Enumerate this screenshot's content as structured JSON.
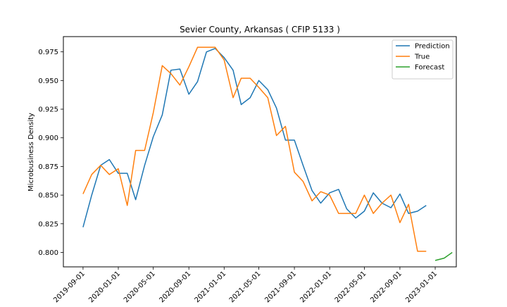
{
  "chart_data": {
    "type": "line",
    "title": "Sevier County, Arkansas ( CFIP 5133 )",
    "xlabel": "",
    "ylabel": "Microbusiness Density",
    "xlim": [
      "2019-06-25",
      "2023-03-15"
    ],
    "ylim": [
      0.7874,
      0.9883
    ],
    "x_ticks": [
      "2019-09-01",
      "2020-01-01",
      "2020-05-01",
      "2020-09-01",
      "2021-01-01",
      "2021-05-01",
      "2021-09-01",
      "2022-01-01",
      "2022-05-01",
      "2022-09-01",
      "2023-01-01"
    ],
    "y_ticks": [
      0.8,
      0.825,
      0.85,
      0.875,
      0.9,
      0.925,
      0.95,
      0.975
    ],
    "y_tick_labels": [
      "0.800",
      "0.825",
      "0.850",
      "0.875",
      "0.900",
      "0.925",
      "0.950",
      "0.975"
    ],
    "grid": false,
    "legend_position": "top-right",
    "series": [
      {
        "name": "Prediction",
        "color": "#1f77b4",
        "x": [
          "2019-09-01",
          "2019-10-01",
          "2019-11-01",
          "2019-12-01",
          "2020-01-01",
          "2020-02-01",
          "2020-03-01",
          "2020-04-01",
          "2020-05-01",
          "2020-06-01",
          "2020-07-01",
          "2020-08-01",
          "2020-09-01",
          "2020-10-01",
          "2020-11-01",
          "2020-12-01",
          "2021-01-01",
          "2021-02-01",
          "2021-03-01",
          "2021-04-01",
          "2021-05-01",
          "2021-06-01",
          "2021-07-01",
          "2021-08-01",
          "2021-09-01",
          "2021-10-01",
          "2021-11-01",
          "2021-12-01",
          "2022-01-01",
          "2022-02-01",
          "2022-03-01",
          "2022-04-01",
          "2022-05-01",
          "2022-06-01",
          "2022-07-01",
          "2022-08-01",
          "2022-09-01",
          "2022-10-01",
          "2022-11-01",
          "2022-12-01"
        ],
        "y": [
          0.822,
          0.85,
          0.876,
          0.881,
          0.869,
          0.869,
          0.846,
          0.876,
          0.901,
          0.92,
          0.959,
          0.96,
          0.938,
          0.949,
          0.975,
          0.978,
          0.97,
          0.959,
          0.929,
          0.935,
          0.95,
          0.942,
          0.926,
          0.898,
          0.898,
          0.876,
          0.854,
          0.843,
          0.852,
          0.855,
          0.838,
          0.83,
          0.836,
          0.852,
          0.843,
          0.839,
          0.851,
          0.834,
          0.836,
          0.841
        ]
      },
      {
        "name": "True",
        "color": "#ff7f0e",
        "x": [
          "2019-09-01",
          "2019-10-01",
          "2019-11-01",
          "2019-12-01",
          "2020-01-01",
          "2020-02-01",
          "2020-03-01",
          "2020-04-01",
          "2020-05-01",
          "2020-06-01",
          "2020-07-01",
          "2020-08-01",
          "2020-09-01",
          "2020-10-01",
          "2020-11-01",
          "2020-12-01",
          "2021-01-01",
          "2021-02-01",
          "2021-03-01",
          "2021-04-01",
          "2021-05-01",
          "2021-06-01",
          "2021-07-01",
          "2021-08-01",
          "2021-09-01",
          "2021-10-01",
          "2021-11-01",
          "2021-12-01",
          "2022-01-01",
          "2022-02-01",
          "2022-03-01",
          "2022-04-01",
          "2022-05-01",
          "2022-06-01",
          "2022-07-01",
          "2022-08-01",
          "2022-09-01",
          "2022-10-01",
          "2022-11-01",
          "2022-12-01"
        ],
        "y": [
          0.851,
          0.868,
          0.876,
          0.868,
          0.873,
          0.841,
          0.889,
          0.889,
          0.922,
          0.963,
          0.956,
          0.946,
          0.962,
          0.979,
          0.979,
          0.979,
          0.968,
          0.935,
          0.952,
          0.952,
          0.944,
          0.935,
          0.902,
          0.91,
          0.87,
          0.862,
          0.845,
          0.853,
          0.85,
          0.834,
          0.834,
          0.834,
          0.85,
          0.834,
          0.843,
          0.85,
          0.826,
          0.842,
          0.801,
          0.801
        ]
      },
      {
        "name": "Forecast",
        "color": "#2ca02c",
        "x": [
          "2023-01-01",
          "2023-02-01",
          "2023-03-01"
        ],
        "y": [
          0.793,
          0.795,
          0.8
        ]
      }
    ]
  }
}
